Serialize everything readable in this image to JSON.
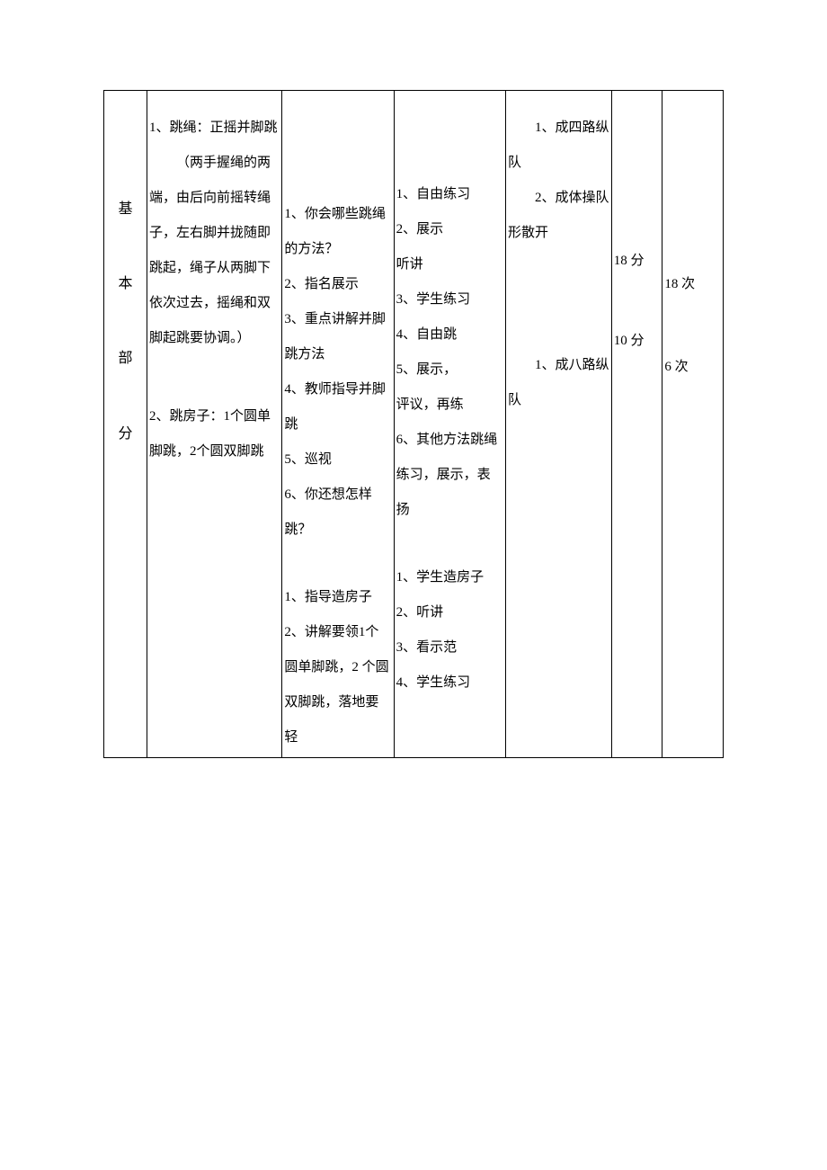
{
  "section": {
    "chars": [
      "基",
      "本",
      "部",
      "分"
    ]
  },
  "content": {
    "item1_title": "1、跳绳：正摇并脚跳",
    "item1_desc": "（两手握绳的两端，由后向前摇转绳子，左右脚并拢随即跳起，绳子从两脚下依次过去，摇绳和双脚起跳要协调。）",
    "item2": "2、跳房子：1个圆单脚跳，2个圆双脚跳"
  },
  "teacher": {
    "group1": [
      "1、你会哪些跳绳的方法？",
      "2、指名展示",
      "3、重点讲解并脚跳方法",
      "4、教师指导并脚跳",
      "5、巡视",
      "6、你还想怎样跳？"
    ],
    "group2": [
      "1、指导造房子",
      "2、讲解要领1个圆单脚跳，2 个圆双脚跳，落地要轻"
    ]
  },
  "student": {
    "group1": [
      "1、自由练习",
      "2、展示",
      "听讲",
      "3、学生练习",
      "4、自由跳",
      "5、展示，",
      "评议，再练",
      "6、其他方法跳绳练习，展示，表扬"
    ],
    "group2": [
      "1、学生造房子",
      "2、听讲",
      "3、看示范",
      "4、学生练习"
    ]
  },
  "formation": {
    "f1": "1、成四路纵队",
    "f2": "2、成体操队形散开",
    "f3": "1、成八路纵队"
  },
  "time": {
    "t1": "18 分",
    "t2": "10 分"
  },
  "count": {
    "c1": "18 次",
    "c2": "6 次"
  }
}
